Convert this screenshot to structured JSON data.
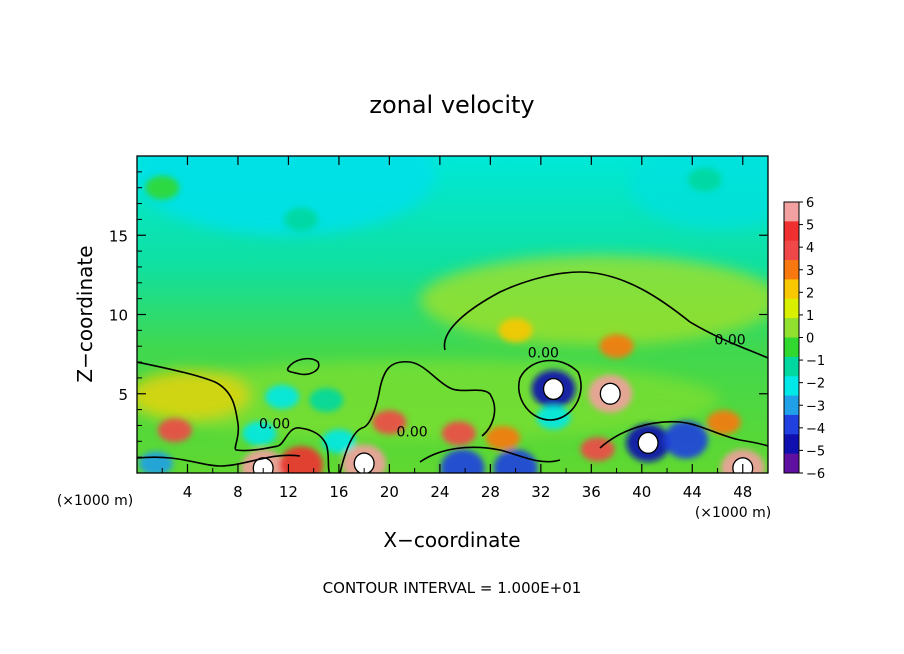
{
  "chart_data": {
    "type": "heatmap",
    "title": "zonal velocity",
    "xlabel": "X−coordinate",
    "ylabel": "Z−coordinate",
    "x_unit": "(×1000 m)",
    "z_unit": "(×1000 m)",
    "footer": "CONTOUR INTERVAL = 1.000E+01",
    "xlim": [
      0,
      50
    ],
    "ylim": [
      0,
      20
    ],
    "x_ticks": [
      4,
      8,
      12,
      16,
      20,
      24,
      28,
      32,
      36,
      40,
      44,
      48
    ],
    "x_tick_labels": [
      "4",
      "8",
      "12",
      "16",
      "20",
      "24",
      "28",
      "32",
      "36",
      "40",
      "44",
      "48"
    ],
    "y_ticks": [
      5,
      10,
      15
    ],
    "y_tick_labels": [
      "5",
      "10",
      "15"
    ],
    "colorbar_levels": [
      6,
      5,
      4,
      3,
      2,
      1,
      0,
      -1,
      -2,
      -3,
      -4,
      -5,
      -6
    ],
    "colorbar_labels": [
      "6",
      "5",
      "4",
      "3",
      "2",
      "1",
      "0",
      "−1",
      "−2",
      "−3",
      "−4",
      "−5",
      "−6"
    ],
    "colorbar_colors": [
      "#f2a0a0",
      "#f03030",
      "#f04848",
      "#f87810",
      "#f8c800",
      "#d8f000",
      "#90e030",
      "#30d830",
      "#00d8a0",
      "#00e8e8",
      "#20a0e8",
      "#2040e0",
      "#1010b0",
      "#6010a0"
    ],
    "contour_labels": [
      {
        "text": "0.00",
        "x": 10.9,
        "z": 2.8
      },
      {
        "text": "0.00",
        "x": 21.8,
        "z": 2.3
      },
      {
        "text": "0.00",
        "x": 32.2,
        "z": 7.3
      },
      {
        "text": "0.00",
        "x": 47.0,
        "z": 8.1
      }
    ],
    "features": [
      {
        "x": 33.0,
        "z": 5.3,
        "value": -6
      },
      {
        "x": 37.5,
        "z": 5.0,
        "value": 6
      },
      {
        "x": 10.0,
        "z": 0.3,
        "value": 6
      },
      {
        "x": 48.0,
        "z": 0.3,
        "value": 6
      },
      {
        "x": 18.0,
        "z": 0.6,
        "value": 6
      },
      {
        "x": 13.0,
        "z": 0.5,
        "value": 5
      },
      {
        "x": 30.0,
        "z": 0.3,
        "value": -5
      },
      {
        "x": 25.8,
        "z": 0.3,
        "value": -5
      },
      {
        "x": 40.5,
        "z": 1.9,
        "value": -6
      },
      {
        "x": 43.5,
        "z": 2.1,
        "value": -5
      },
      {
        "x": 36.5,
        "z": 1.5,
        "value": 4
      },
      {
        "x": 3.0,
        "z": 2.7,
        "value": 4
      },
      {
        "x": 25.5,
        "z": 2.5,
        "value": 4
      },
      {
        "x": 20.0,
        "z": 3.2,
        "value": 4
      },
      {
        "x": 29.0,
        "z": 2.2,
        "value": 3
      },
      {
        "x": 9.7,
        "z": 2.5,
        "value": -3
      },
      {
        "x": 16.0,
        "z": 2.0,
        "value": -3
      },
      {
        "x": 11.5,
        "z": 4.8,
        "value": -3
      },
      {
        "x": 15.0,
        "z": 4.6,
        "value": -2
      },
      {
        "x": 33.0,
        "z": 3.5,
        "value": -3
      },
      {
        "x": 46.5,
        "z": 3.2,
        "value": 3
      },
      {
        "x": 1.5,
        "z": 0.6,
        "value": -4
      },
      {
        "x": 38.0,
        "z": 8.0,
        "value": 3
      },
      {
        "x": 30.0,
        "z": 9.0,
        "value": 2
      },
      {
        "x": 13.0,
        "z": 16.0,
        "value": -2
      },
      {
        "x": 45.0,
        "z": 18.5,
        "value": -2
      },
      {
        "x": 2.0,
        "z": 18.0,
        "value": -1
      }
    ]
  }
}
